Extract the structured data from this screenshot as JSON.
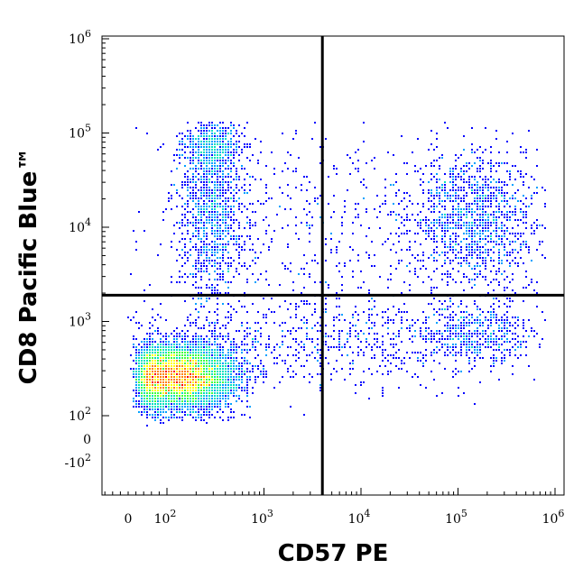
{
  "chart_data": {
    "type": "scatter",
    "subtype": "flow-cytometry-density-dot-plot",
    "title": "",
    "xlabel": "CD57 PE",
    "ylabel": "CD8 Pacific Blue™",
    "x_scale": "biexponential",
    "y_scale": "biexponential",
    "xlim": [
      -30,
      1200000
    ],
    "ylim": [
      -1000,
      1300000
    ],
    "x_ticks": [
      {
        "value": 0,
        "label": "0"
      },
      {
        "value": 100,
        "base": "10",
        "exp": "2"
      },
      {
        "value": 1000,
        "base": "10",
        "exp": "3"
      },
      {
        "value": 10000,
        "base": "10",
        "exp": "4"
      },
      {
        "value": 100000,
        "base": "10",
        "exp": "5"
      },
      {
        "value": 1000000,
        "base": "10",
        "exp": "6"
      }
    ],
    "y_ticks": [
      {
        "value": -100,
        "label": "-10",
        "exp": "2"
      },
      {
        "value": 0,
        "label": "0"
      },
      {
        "value": 100,
        "base": "10",
        "exp": "2"
      },
      {
        "value": 1000,
        "base": "10",
        "exp": "3"
      },
      {
        "value": 10000,
        "base": "10",
        "exp": "4"
      },
      {
        "value": 100000,
        "base": "10",
        "exp": "5"
      },
      {
        "value": 1000000,
        "base": "10",
        "exp": "6"
      }
    ],
    "quadrant_gates": {
      "x": 4000,
      "y": 1900
    },
    "color_scale": [
      "#0000ff",
      "#00a0ff",
      "#00e0c0",
      "#40ff40",
      "#ffff00",
      "#ff8000",
      "#ff0000"
    ],
    "populations": [
      {
        "cx": 130,
        "cy": 260,
        "sx": 0.28,
        "sy": 0.16,
        "n": 9000
      },
      {
        "cx": 300,
        "cy": 14000,
        "sx": 0.17,
        "sy": 0.5,
        "n": 1100
      },
      {
        "cx": 300,
        "cy": 70000,
        "sx": 0.15,
        "sy": 0.13,
        "n": 500
      },
      {
        "cx": 150000,
        "cy": 12000,
        "sx": 0.35,
        "sy": 0.35,
        "n": 1300
      },
      {
        "cx": 150000,
        "cy": 700,
        "sx": 0.3,
        "sy": 0.18,
        "n": 500
      },
      {
        "cx": 5000,
        "cy": 600,
        "sx": 1.0,
        "sy": 0.25,
        "n": 700
      },
      {
        "cx": 5000,
        "cy": 10000,
        "sx": 1.0,
        "sy": 0.6,
        "n": 500
      }
    ]
  }
}
